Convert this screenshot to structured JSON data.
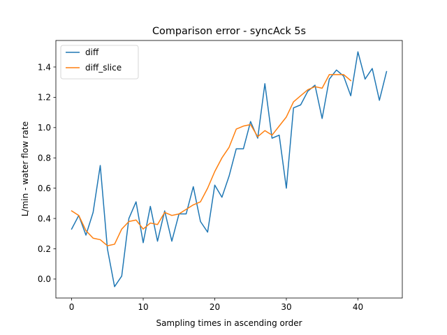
{
  "chart_data": {
    "type": "line",
    "title": "Comparison error - syncAck 5s",
    "xlabel": "Sampling times in ascending order",
    "ylabel": "L/min - water flow rate",
    "xlim": [
      -2.2,
      46.2
    ],
    "ylim": [
      -0.125,
      1.575
    ],
    "xticks": [
      0,
      10,
      20,
      30,
      40
    ],
    "yticks": [
      0.0,
      0.2,
      0.4,
      0.6,
      0.8,
      1.0,
      1.2,
      1.4
    ],
    "ytick_labels": [
      "0.0",
      "0.2",
      "0.4",
      "0.6",
      "0.8",
      "1.0",
      "1.2",
      "1.4"
    ],
    "grid": false,
    "legend_position": "upper-left",
    "series": [
      {
        "name": "diff",
        "color": "#1f77b4",
        "x": [
          0,
          1,
          2,
          3,
          4,
          5,
          6,
          7,
          8,
          9,
          10,
          11,
          12,
          13,
          14,
          15,
          16,
          17,
          18,
          19,
          20,
          21,
          22,
          23,
          24,
          25,
          26,
          27,
          28,
          29,
          30,
          31,
          32,
          33,
          34,
          35,
          36,
          37,
          38,
          39,
          40,
          41,
          42,
          43,
          44
        ],
        "y": [
          0.33,
          0.42,
          0.29,
          0.44,
          0.75,
          0.2,
          -0.05,
          0.02,
          0.4,
          0.51,
          0.24,
          0.48,
          0.25,
          0.45,
          0.25,
          0.43,
          0.43,
          0.61,
          0.38,
          0.31,
          0.62,
          0.54,
          0.68,
          0.86,
          0.86,
          1.04,
          0.93,
          1.29,
          0.93,
          0.95,
          0.6,
          1.13,
          1.15,
          1.24,
          1.28,
          1.06,
          1.32,
          1.38,
          1.34,
          1.21,
          1.5,
          1.32,
          1.39,
          1.18,
          1.37
        ]
      },
      {
        "name": "diff_slice",
        "color": "#ff7f0e",
        "x": [
          0,
          1,
          2,
          3,
          4,
          5,
          6,
          7,
          8,
          9,
          10,
          11,
          12,
          13,
          14,
          15,
          16,
          17,
          18,
          19,
          20,
          21,
          22,
          23,
          24,
          25,
          26,
          27,
          28,
          29,
          30,
          31,
          32,
          33,
          34,
          35,
          36,
          37,
          38,
          39
        ],
        "y": [
          0.45,
          0.42,
          0.32,
          0.27,
          0.26,
          0.22,
          0.23,
          0.33,
          0.38,
          0.39,
          0.33,
          0.37,
          0.36,
          0.44,
          0.42,
          0.43,
          0.46,
          0.49,
          0.51,
          0.6,
          0.71,
          0.8,
          0.87,
          0.99,
          1.01,
          1.02,
          0.94,
          0.98,
          0.95,
          1.01,
          1.07,
          1.17,
          1.21,
          1.25,
          1.27,
          1.26,
          1.35,
          1.35,
          1.35,
          1.31
        ]
      }
    ]
  }
}
